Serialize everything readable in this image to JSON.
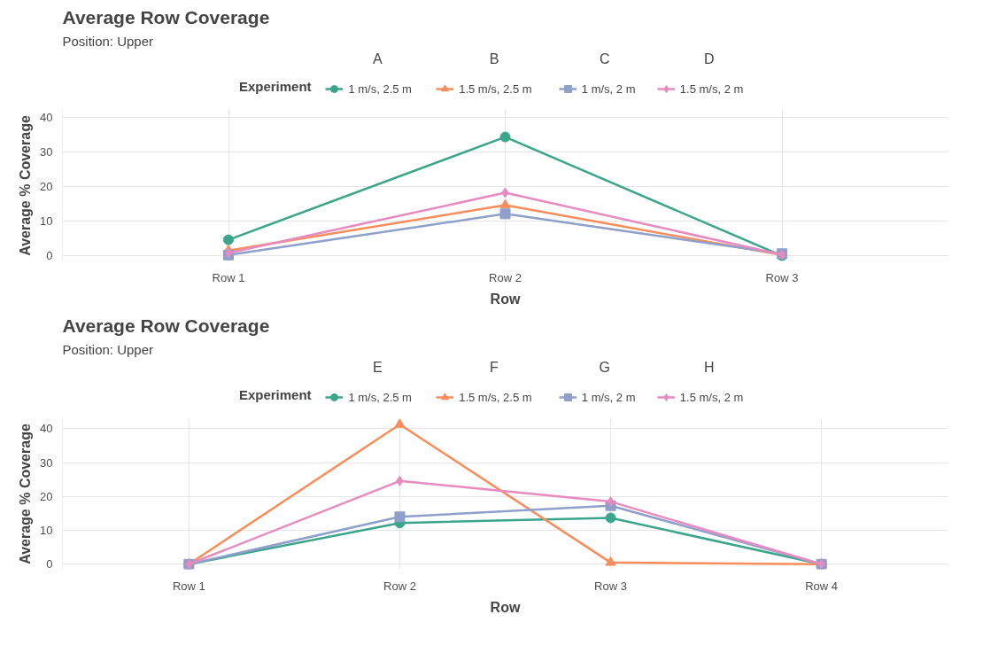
{
  "chart_data": [
    {
      "type": "line",
      "title": "Average Row Coverage",
      "subtitle": "Position: Upper",
      "xlabel": "Row",
      "ylabel": "Average % Coverage",
      "legend_title": "Experiment",
      "annotations": [
        "A",
        "B",
        "C",
        "D"
      ],
      "categories": [
        "Row 1",
        "Row 2",
        "Row 3"
      ],
      "ylim": [
        -1.5,
        42
      ],
      "yticks": [
        0,
        10,
        20,
        30,
        40
      ],
      "grid": true,
      "legend": "top",
      "series": [
        {
          "name": "1 m/s, 2.5 m",
          "color": "#3aa58a",
          "marker": "circle",
          "values": [
            4.6,
            34.3,
            0
          ]
        },
        {
          "name": "1.5 m/s, 2.5 m",
          "color": "#f88c5a",
          "marker": "triangle",
          "values": [
            1.5,
            14.6,
            0.2
          ]
        },
        {
          "name": "1 m/s, 2 m",
          "color": "#8d9fca",
          "marker": "square",
          "values": [
            0.2,
            12.1,
            0.6
          ]
        },
        {
          "name": "1.5 m/s, 2 m",
          "color": "#e78ac0",
          "marker": "diamond",
          "values": [
            0.8,
            18.2,
            0.3
          ]
        }
      ]
    },
    {
      "type": "line",
      "title": "Average Row Coverage",
      "subtitle": "Position: Upper",
      "xlabel": "Row",
      "ylabel": "Average % Coverage",
      "legend_title": "Experiment",
      "annotations": [
        "E",
        "F",
        "G",
        "H"
      ],
      "categories": [
        "Row 1",
        "Row 2",
        "Row 3",
        "Row 4"
      ],
      "ylim": [
        -1.5,
        43
      ],
      "yticks": [
        0,
        10,
        20,
        30,
        40
      ],
      "grid": true,
      "legend": "top",
      "series": [
        {
          "name": "1 m/s, 2.5 m",
          "color": "#3aa58a",
          "marker": "circle",
          "values": [
            0,
            12.2,
            13.7,
            0
          ]
        },
        {
          "name": "1.5 m/s, 2.5 m",
          "color": "#f88c5a",
          "marker": "triangle",
          "values": [
            0,
            41.3,
            0.5,
            0
          ]
        },
        {
          "name": "1 m/s, 2 m",
          "color": "#8d9fca",
          "marker": "square",
          "values": [
            0,
            14,
            17.3,
            0
          ]
        },
        {
          "name": "1.5 m/s, 2 m",
          "color": "#e78ac0",
          "marker": "diamond",
          "values": [
            0,
            24.6,
            18.5,
            0
          ]
        }
      ]
    }
  ]
}
